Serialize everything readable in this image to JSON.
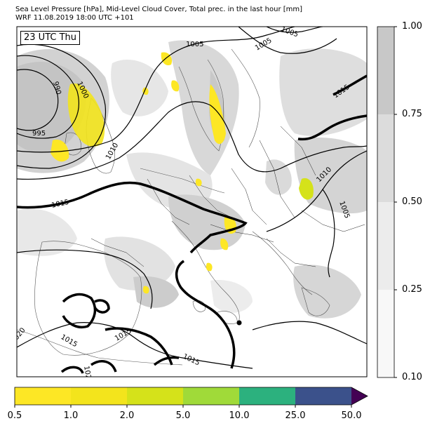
{
  "title": {
    "line1": "Sea Level Pressure [hPa], Mid-Level Cloud Cover, Total prec. in the last hour [mm]",
    "line2": "WRF 11.08.2019 18:00 UTC +101"
  },
  "badge": "23 UTC Thu",
  "isobar_labels": [
    {
      "name": "isobar-label-1005-a",
      "text": "1005"
    },
    {
      "name": "isobar-label-1005-b",
      "text": "1005"
    },
    {
      "name": "isobar-label-1005-c",
      "text": "1005"
    },
    {
      "name": "isobar-label-1005-d",
      "text": "1005"
    },
    {
      "name": "isobar-label-990",
      "text": "990"
    },
    {
      "name": "isobar-label-1000",
      "text": "1000"
    },
    {
      "name": "isobar-label-995",
      "text": "995"
    },
    {
      "name": "isobar-label-1010-a",
      "text": "1010"
    },
    {
      "name": "isobar-label-1010-b",
      "text": "1010"
    },
    {
      "name": "isobar-label-1015-a",
      "text": "1015"
    },
    {
      "name": "isobar-label-1015-b",
      "text": "1015"
    },
    {
      "name": "isobar-label-1015-c",
      "text": "1015"
    },
    {
      "name": "isobar-label-1015-d",
      "text": "1015"
    },
    {
      "name": "isobar-label-1015-e",
      "text": "1015"
    },
    {
      "name": "isobar-label-1020",
      "text": "1020"
    },
    {
      "name": "isobar-label-1020-partial",
      "text": "102"
    }
  ],
  "cloud_colorbar": {
    "labels": [
      "1.00",
      "0.75",
      "0.50",
      "0.25",
      "0.10"
    ],
    "colors": [
      "#c8c8c8",
      "#dcdcdc",
      "#ececec",
      "#f8f8f8"
    ]
  },
  "precip_colorbar": {
    "labels": [
      "0.5",
      "1.0",
      "2.0",
      "5.0",
      "10.0",
      "25.0",
      "50.0"
    ],
    "colors": [
      "#fde725",
      "#f3e41c",
      "#d5e21a",
      "#a0da39",
      "#2cb17e",
      "#3b518b",
      "#440154"
    ],
    "extend": "max"
  }
}
